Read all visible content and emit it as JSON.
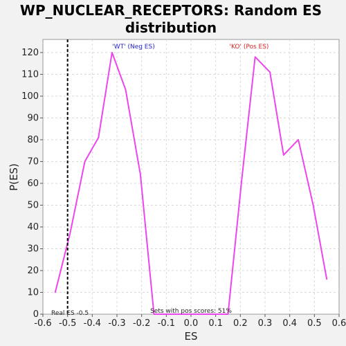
{
  "chart_data": {
    "type": "line",
    "title_line1": "WP_NUCLEAR_RECEPTORS: Random ES",
    "title_line2": "distribution",
    "xlabel": "ES",
    "ylabel": "P(ES)",
    "xlim": [
      -0.6,
      0.6
    ],
    "ylim": [
      0,
      126
    ],
    "x_ticks": [
      -0.6,
      -0.5,
      -0.4,
      -0.3,
      -0.2,
      -0.1,
      0.0,
      0.1,
      0.2,
      0.3,
      0.4,
      0.5,
      0.6
    ],
    "x_tick_labels": [
      "-0.6",
      "-0.5",
      "-0.4",
      "-0.3",
      "-0.2",
      "-0.1",
      "0.0",
      "0.1",
      "0.2",
      "0.3",
      "0.4",
      "0.5",
      "0.6"
    ],
    "y_ticks": [
      0,
      10,
      20,
      30,
      40,
      50,
      60,
      70,
      80,
      90,
      100,
      110,
      120
    ],
    "y_tick_labels": [
      "0",
      "10",
      "20",
      "30",
      "40",
      "50",
      "60",
      "70",
      "80",
      "90",
      "100",
      "110",
      "120"
    ],
    "grid": true,
    "series": [
      {
        "color": "#ee44ee",
        "x": [
          -0.55,
          -0.49,
          -0.43,
          -0.375,
          -0.32,
          -0.265,
          -0.205,
          -0.15,
          0.15,
          0.205,
          0.26,
          0.32,
          0.375,
          0.435,
          0.495,
          0.55
        ],
        "y": [
          10,
          37,
          70,
          81,
          120,
          103,
          64,
          0,
          0,
          61,
          118,
          111,
          73,
          80,
          50,
          16
        ]
      }
    ],
    "real_es": -0.5,
    "annotations": {
      "neg_label": "'WT' (Neg ES)",
      "neg_color": "#2222cc",
      "pos_label": "'KO' (Pos ES)",
      "pos_color": "#dd2222",
      "real_es_label": "Real ES -0.5",
      "pos_scores_label": "Sets with pos scores: 51%"
    }
  }
}
